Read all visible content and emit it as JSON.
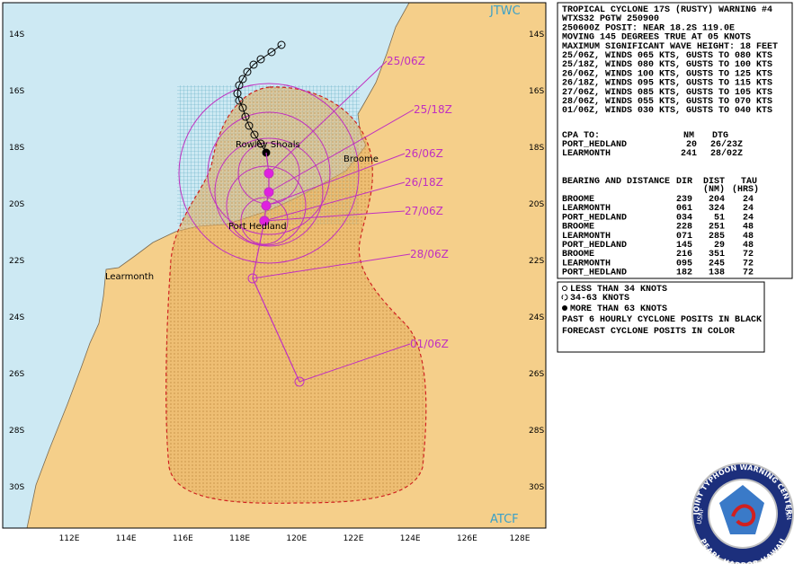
{
  "map": {
    "agency_top": "JTWC",
    "agency_bottom": "ATCF",
    "lat_labels": [
      "14S",
      "16S",
      "18S",
      "20S",
      "22S",
      "24S",
      "26S",
      "28S",
      "30S"
    ],
    "lon_labels": [
      "112E",
      "114E",
      "116E",
      "118E",
      "120E",
      "122E",
      "124E",
      "126E",
      "128E"
    ],
    "places": [
      "Rowley Shoals",
      "Broome",
      "Port Hedland",
      "Learmonth"
    ],
    "forecast_labels": [
      "25/06Z",
      "25/18Z",
      "26/06Z",
      "26/18Z",
      "27/06Z",
      "28/06Z",
      "01/06Z"
    ]
  },
  "warning": {
    "lines": [
      "TROPICAL CYCLONE 17S (RUSTY) WARNING #4",
      "WTXS32 PGTW 250900",
      "250600Z POSIT: NEAR 18.2S 119.0E",
      "MOVING 145 DEGREES TRUE AT 05 KNOTS",
      "MAXIMUM SIGNIFICANT WAVE HEIGHT: 18 FEET",
      "25/06Z, WINDS 065 KTS, GUSTS TO 080 KTS",
      "25/18Z, WINDS 080 KTS, GUSTS TO 100 KTS",
      "26/06Z, WINDS 100 KTS, GUSTS TO 125 KTS",
      "26/18Z, WINDS 095 KTS, GUSTS TO 115 KTS",
      "27/06Z, WINDS 085 KTS, GUSTS TO 105 KTS",
      "28/06Z, WINDS 055 KTS, GUSTS TO 070 KTS",
      "01/06Z, WINDS 030 KTS, GUSTS TO 040 KTS"
    ]
  },
  "cpa": {
    "header": [
      "CPA TO:",
      "NM",
      "DTG"
    ],
    "rows": [
      [
        "PORT_HEDLAND",
        "20",
        "26/23Z"
      ],
      [
        "LEARMONTH",
        "241",
        "28/02Z"
      ]
    ]
  },
  "bearing": {
    "header": [
      "BEARING AND DISTANCE",
      "DIR",
      "DIST",
      "TAU"
    ],
    "subheader": [
      "(NM)",
      "(HRS)"
    ],
    "rows": [
      [
        "BROOME",
        "239",
        "204",
        "24"
      ],
      [
        "LEARMONTH",
        "061",
        "324",
        "24"
      ],
      [
        "PORT_HEDLAND",
        "034",
        "51",
        "24"
      ],
      [
        "BROOME",
        "228",
        "251",
        "48"
      ],
      [
        "LEARMONTH",
        "071",
        "285",
        "48"
      ],
      [
        "PORT_HEDLAND",
        "145",
        "29",
        "48"
      ],
      [
        "BROOME",
        "216",
        "351",
        "72"
      ],
      [
        "LEARMONTH",
        "095",
        "245",
        "72"
      ],
      [
        "PORT_HEDLAND",
        "182",
        "138",
        "72"
      ]
    ]
  },
  "legend": {
    "items": [
      "LESS THAN 34 KNOTS",
      "34-63 KNOTS",
      "MORE THAN 63 KNOTS",
      "PAST 6 HOURLY CYCLONE POSITS IN BLACK",
      "FORECAST CYCLONE POSITS IN COLOR"
    ]
  },
  "logo": {
    "ring_top": "JOINT TYPHOON WARNING CENTER",
    "ring_bottom": "PEARL HARBOR HAWAII",
    "left": "USAF",
    "right": "USN"
  }
}
